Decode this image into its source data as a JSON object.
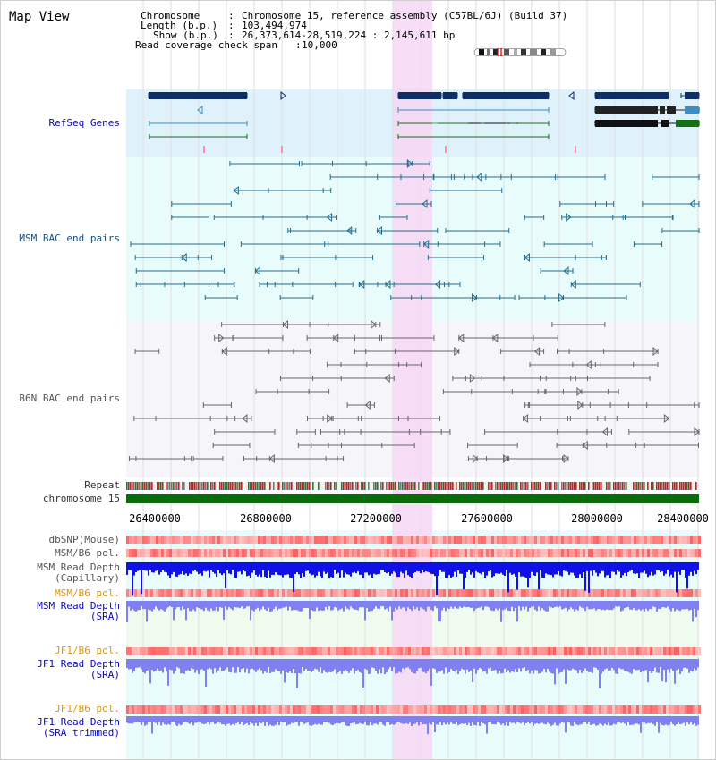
{
  "title": "Map View",
  "info": {
    "chromosome_key": "Chromosome",
    "chromosome_val": "Chromosome 15, reference assembly (C57BL/6J) (Build 37)",
    "length_key": "Length (b.p.)",
    "length_val": "103,494,974",
    "show_key": "Show (b.p.)",
    "show_val": "26,373,614-28,519,224 : 2,145,611 bp",
    "span_key": "Read coverage check span",
    "span_val": "10,000"
  },
  "tracks": {
    "refseq": "RefSeq Genes",
    "msm_bac": "MSM BAC end pairs",
    "b6n_bac": "B6N BAC end pairs",
    "repeat": "Repeat",
    "chromosome": "chromosome 15",
    "dbsnp": "dbSNP(Mouse)",
    "msm_b6_pol_1": "MSM/B6 pol.",
    "msm_depth_cap": "MSM Read Depth",
    "msm_depth_cap_sub": "(Capillary)",
    "msm_b6_pol_2": "MSM/B6 pol.",
    "msm_depth_sra": "MSM Read Depth",
    "msm_depth_sra_sub": "(SRA)",
    "jf1_b6_pol_1": "JF1/B6 pol.",
    "jf1_depth_sra": "JF1 Read Depth",
    "jf1_depth_sra_sub": "(SRA)",
    "jf1_b6_pol_2": "JF1/B6 pol.",
    "jf1_depth_trim": "JF1 Read Depth",
    "jf1_depth_trim_sub": "(SRA trimmed)"
  },
  "axis_ticks": [
    "26400000",
    "26800000",
    "27200000",
    "27600000",
    "28000000",
    "28400000"
  ],
  "colors": {
    "refseq_bg": "#dff2fc",
    "track_bg": "#e9fcfc",
    "highlight": "#f7d7f5",
    "gene_dark": "#0d2f66",
    "gene_teal": "#3a8fc0",
    "gene_green": "#157015",
    "msm_bac": "#236d8f",
    "b6n_bac": "#666666",
    "chromosome": "#0a6b0a",
    "snp": "#e33a3a",
    "depth_cap": "#1010e8",
    "depth_sra": "#8080f0"
  }
}
